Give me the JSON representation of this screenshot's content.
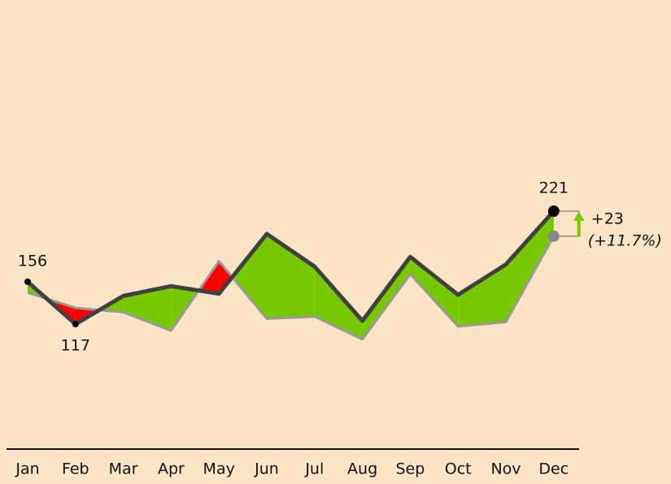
{
  "chart_data": {
    "type": "line",
    "categories": [
      "Jan",
      "Feb",
      "Mar",
      "Apr",
      "May",
      "Jun",
      "Jul",
      "Aug",
      "Sep",
      "Oct",
      "Nov",
      "Dec"
    ],
    "series": [
      {
        "color": "#404040",
        "values": [
          156,
          117,
          143,
          152,
          145,
          200,
          170,
          120,
          179,
          144,
          172,
          221
        ]
      },
      {
        "color": "#999999",
        "values": [
          146,
          132,
          128,
          111,
          175,
          122,
          124,
          103,
          163,
          115,
          119,
          198
        ]
      }
    ],
    "positive_color": "#77c800",
    "negative_color": "#ff0000",
    "annotations": {
      "delta": "+23",
      "delta_percent": "(+11.7%)"
    }
  }
}
